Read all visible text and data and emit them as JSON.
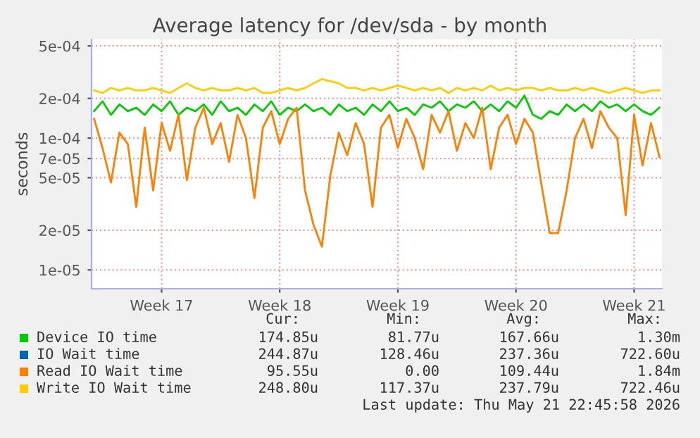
{
  "chart_data": {
    "type": "line",
    "title": "Average latency for /dev/sda - by month",
    "ylabel": "seconds",
    "log": "y",
    "grid": true,
    "legend": "bottom",
    "line_style": "solid",
    "marker": "none",
    "ylim": [
      7.2e-06,
      0.00056
    ],
    "yticks": [
      {
        "value": 1e-05,
        "label": "1e-05"
      },
      {
        "value": 2e-05,
        "label": "2e-05"
      },
      {
        "value": 5e-05,
        "label": "5e-05"
      },
      {
        "value": 7e-05,
        "label": "7e-05"
      },
      {
        "value": 0.0001,
        "label": "1e-04"
      },
      {
        "value": 0.0002,
        "label": "2e-04"
      },
      {
        "value": 0.0005,
        "label": "5e-04"
      }
    ],
    "categories": [
      null,
      null,
      null,
      null,
      null,
      null,
      null,
      null,
      "Week 17",
      null,
      null,
      null,
      null,
      null,
      null,
      null,
      null,
      null,
      null,
      null,
      null,
      null,
      "Week 18",
      null,
      null,
      null,
      null,
      null,
      null,
      null,
      null,
      null,
      null,
      null,
      null,
      null,
      "Week 19",
      null,
      null,
      null,
      null,
      null,
      null,
      null,
      null,
      null,
      null,
      null,
      null,
      null,
      "Week 20",
      null,
      null,
      null,
      null,
      null,
      null,
      null,
      null,
      null,
      null,
      null,
      null,
      null,
      "Week 21",
      null,
      null,
      null
    ],
    "series": [
      {
        "name": "Device IO time",
        "color": "#00cc00",
        "values": [
          0.00016,
          0.00019,
          0.00015,
          0.00018,
          0.00016,
          0.00017,
          0.00015,
          0.00018,
          0.00016,
          0.00019,
          0.00015,
          0.00017,
          0.00016,
          0.00018,
          0.00015,
          0.00019,
          0.00016,
          0.00017,
          0.00015,
          0.00018,
          0.00016,
          0.00019,
          0.00015,
          0.00017,
          0.00016,
          0.00018,
          0.00016,
          0.00017,
          0.00015,
          0.00018,
          0.00016,
          0.00017,
          0.00015,
          0.00018,
          0.00016,
          0.00019,
          0.00016,
          0.00017,
          0.00015,
          0.00018,
          0.00017,
          0.00019,
          0.00016,
          0.00018,
          0.00017,
          0.00019,
          0.00016,
          0.00018,
          0.00016,
          0.00019,
          0.00017,
          0.00021,
          0.00015,
          0.00014,
          0.00016,
          0.00015,
          0.00018,
          0.00016,
          0.00018,
          0.00016,
          0.00019,
          0.00017,
          0.00018,
          0.00016,
          0.00018,
          0.00016,
          0.00015,
          0.00017
        ]
      },
      {
        "name": "IO Wait time",
        "color": "#0066b3",
        "values": [
          null,
          null,
          null,
          null,
          null,
          null,
          null,
          null,
          null,
          null,
          null,
          null,
          null,
          null,
          null,
          null,
          null,
          null,
          null,
          null,
          null,
          null,
          null,
          null,
          null,
          null,
          null,
          null,
          null,
          null,
          null,
          null,
          null,
          null,
          null,
          null,
          null,
          null,
          null,
          null,
          null,
          null,
          null,
          null,
          null,
          null,
          null,
          null,
          null,
          null,
          null,
          null,
          null,
          null,
          null,
          null,
          null,
          null,
          null,
          null,
          null,
          null,
          null,
          null,
          null,
          null,
          null,
          null
        ]
      },
      {
        "name": "Read IO Wait time",
        "color": "#ff8000",
        "values": [
          0.00014,
          8.4e-05,
          4.6e-05,
          0.00011,
          9e-05,
          3e-05,
          0.00012,
          4e-05,
          0.00013,
          8e-05,
          0.00015,
          4.8e-05,
          0.00012,
          0.00017,
          9e-05,
          0.00013,
          6.6e-05,
          0.00015,
          0.0001,
          3.5e-05,
          0.00012,
          0.00016,
          9e-05,
          0.00014,
          0.00017,
          4e-05,
          2.2e-05,
          1.5e-05,
          5.2e-05,
          0.00011,
          7.4e-05,
          0.00013,
          9e-05,
          3e-05,
          0.00012,
          0.00015,
          8.4e-05,
          0.00014,
          0.0001,
          5.8e-05,
          0.00015,
          0.00011,
          0.00016,
          8e-05,
          0.00013,
          0.0001,
          0.00017,
          5.8e-05,
          0.00012,
          0.00015,
          9e-05,
          0.00014,
          0.00011,
          4.5e-05,
          1.9e-05,
          1.9e-05,
          4e-05,
          0.0001,
          0.00014,
          8.4e-05,
          0.00016,
          0.00012,
          0.0001,
          2.6e-05,
          0.00015,
          6.2e-05,
          0.00013,
          7.2e-05
        ]
      },
      {
        "name": "Write IO Wait time",
        "color": "#ffcc00",
        "values": [
          0.00023,
          0.00022,
          0.00024,
          0.00023,
          0.00024,
          0.00023,
          0.00023,
          0.00024,
          0.00023,
          0.00022,
          0.00024,
          0.00026,
          0.00024,
          0.00023,
          0.00024,
          0.00023,
          0.00023,
          0.00024,
          0.00023,
          0.00024,
          0.00022,
          0.00022,
          0.00023,
          0.00024,
          0.00023,
          0.00024,
          0.00026,
          0.00028,
          0.00027,
          0.00026,
          0.00024,
          0.00024,
          0.00023,
          0.00024,
          0.00023,
          0.00024,
          0.00025,
          0.00024,
          0.00023,
          0.00024,
          0.00023,
          0.00024,
          0.00022,
          0.00024,
          0.00023,
          0.00024,
          0.00023,
          0.00025,
          0.00023,
          0.00024,
          0.00023,
          0.00024,
          0.00024,
          0.00023,
          0.00024,
          0.00023,
          0.00023,
          0.00024,
          0.00023,
          0.00024,
          0.00023,
          0.00022,
          0.00023,
          0.00024,
          0.00023,
          0.00022,
          0.00023,
          0.00023
        ]
      }
    ],
    "annotations": [
      "Cur:",
      "Min:",
      "Avg:",
      "Max:",
      "174.85u",
      "81.77u",
      "167.66u",
      "1.30m",
      "244.87u",
      "128.46u",
      "237.36u",
      "722.60u",
      "95.55u",
      "0.00",
      "109.44u",
      "1.84m",
      "248.80u",
      "117.37u",
      "237.79u",
      "722.46u",
      "Last update: Thu May 21 22:45:58 2026"
    ]
  }
}
